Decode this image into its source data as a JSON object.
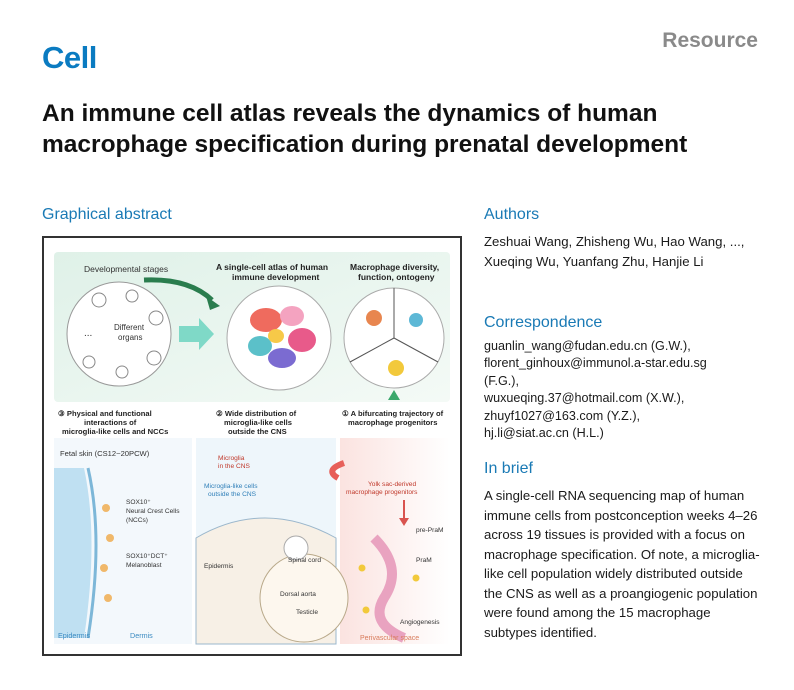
{
  "journal": "Cell",
  "article_type": "Resource",
  "title": "An immune cell atlas reveals the dynamics of human macrophage specification during prenatal development",
  "graphical_abstract": {
    "heading": "Graphical abstract",
    "labels": {
      "dev_stages": "Developmental stages",
      "different_organs_1": "Different",
      "different_organs_2": "organs",
      "dots": "...",
      "atlas_1": "A single-cell atlas of human",
      "atlas_2": "immune development",
      "diversity_1": "Macrophage diversity,",
      "diversity_2": "function, ontogeny",
      "p3_1": "③ Physical and functional",
      "p3_2": "interactions of",
      "p3_3": "microglia-like cells and NCCs",
      "p2_1": "② Wide distribution of",
      "p2_2": "microglia-like cells",
      "p2_3": "outside the CNS",
      "p1_1": "① A bifurcating trajectory of",
      "p1_2": "macrophage progenitors",
      "fetal_skin": "Fetal skin (CS12~20PCW)",
      "sox10_1": "SOX10⁺",
      "sox10_2": "Neural Crest Cells",
      "sox10_3": "(NCCs)",
      "sox10dct_1": "SOX10⁺DCT⁺",
      "sox10dct_2": "Melanoblast",
      "epidermis_left": "Epidermis",
      "dermis": "Dermis",
      "mic_cns_1": "Microglia",
      "mic_cns_2": "in the CNS",
      "mic_out_1": "Microglia-like cells",
      "mic_out_2": "outside the CNS",
      "spinal_cord": "Spinal cord",
      "epidermis_mid": "Epidermis",
      "dorsal_aorta": "Dorsal aorta",
      "testicle": "Testicle",
      "yolk_1": "Yolk sac-derived",
      "yolk_2": "macrophage progenitors",
      "pre_pram": "pre-PraM",
      "pram": "PraM",
      "angiogenesis": "Angiogenesis",
      "perivascular": "Perivascular space"
    }
  },
  "authors": {
    "heading": "Authors",
    "text": "Zeshuai Wang, Zhisheng Wu, Hao Wang, ..., Xueqing Wu, Yuanfang Zhu, Hanjie Li"
  },
  "correspondence": {
    "heading": "Correspondence",
    "lines": [
      "guanlin_wang@fudan.edu.cn (G.W.),",
      "florent_ginhoux@immunol.a-star.edu.sg",
      "(F.G.),",
      "wuxueqing.37@hotmail.com (X.W.),",
      "zhuyf1027@163.com (Y.Z.),",
      "hj.li@siat.ac.cn (H.L.)"
    ]
  },
  "in_brief": {
    "heading": "In brief",
    "text": "A single-cell RNA sequencing map of human immune cells from postconception weeks 4–26 across 19 tissues is provided with a focus on macrophage specification. Of note, a microglia-like cell population widely distributed outside the CNS as well as a proangiogenic population were found among the 15 macrophage subtypes identified."
  },
  "colors": {
    "brand": "#0a7bc1",
    "section": "#1a7ab5",
    "type_label": "#8a8a8a"
  }
}
